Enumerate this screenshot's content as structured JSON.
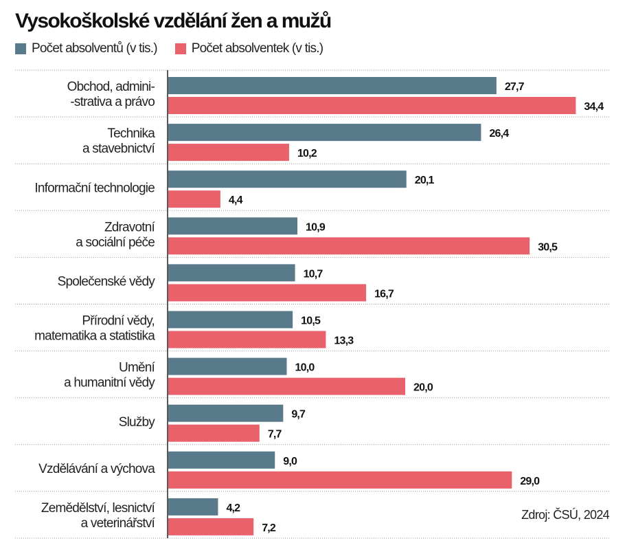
{
  "chart_data": {
    "type": "bar",
    "orientation": "horizontal",
    "title": "Vysokoškolské vzdělání žen a mužů",
    "categories": [
      [
        "Obchod, admini-",
        "-strativa a právo"
      ],
      [
        "Technika",
        "a stavebnictví"
      ],
      [
        "Informační technologie"
      ],
      [
        "Zdravotní",
        "a sociální péče"
      ],
      [
        "Společenské vědy"
      ],
      [
        "Přírodní vědy,",
        "matematika a statistika"
      ],
      [
        "Umění",
        "a humanitní vědy"
      ],
      [
        "Služby"
      ],
      [
        "Vzdělávání a výchova"
      ],
      [
        "Zemědělství, lesnictví",
        "a veterinářství"
      ]
    ],
    "series": [
      {
        "name": "Počet absolventů (v tis.)",
        "color": "#587a8a",
        "values": [
          27.7,
          26.4,
          20.1,
          10.9,
          10.7,
          10.5,
          10.0,
          9.7,
          9.0,
          4.2
        ],
        "labels": [
          "27,7",
          "26,4",
          "20,1",
          "10,9",
          "10,7",
          "10,5",
          "10,0",
          "9,7",
          "9,0",
          "4,2"
        ]
      },
      {
        "name": "Počet absolventek (v tis.)",
        "color": "#e9626b",
        "values": [
          34.4,
          10.2,
          4.4,
          30.5,
          16.7,
          13.3,
          20.0,
          7.7,
          29.0,
          7.2
        ],
        "labels": [
          "34,4",
          "10,2",
          "4,4",
          "30,5",
          "16,7",
          "13,3",
          "20,0",
          "7,7",
          "29,0",
          "7,2"
        ]
      }
    ],
    "xlim": [
      0,
      35
    ],
    "grid": "dotted row separators",
    "legend": "top-left",
    "source": "Zdroj: ČSÚ, 2024"
  }
}
